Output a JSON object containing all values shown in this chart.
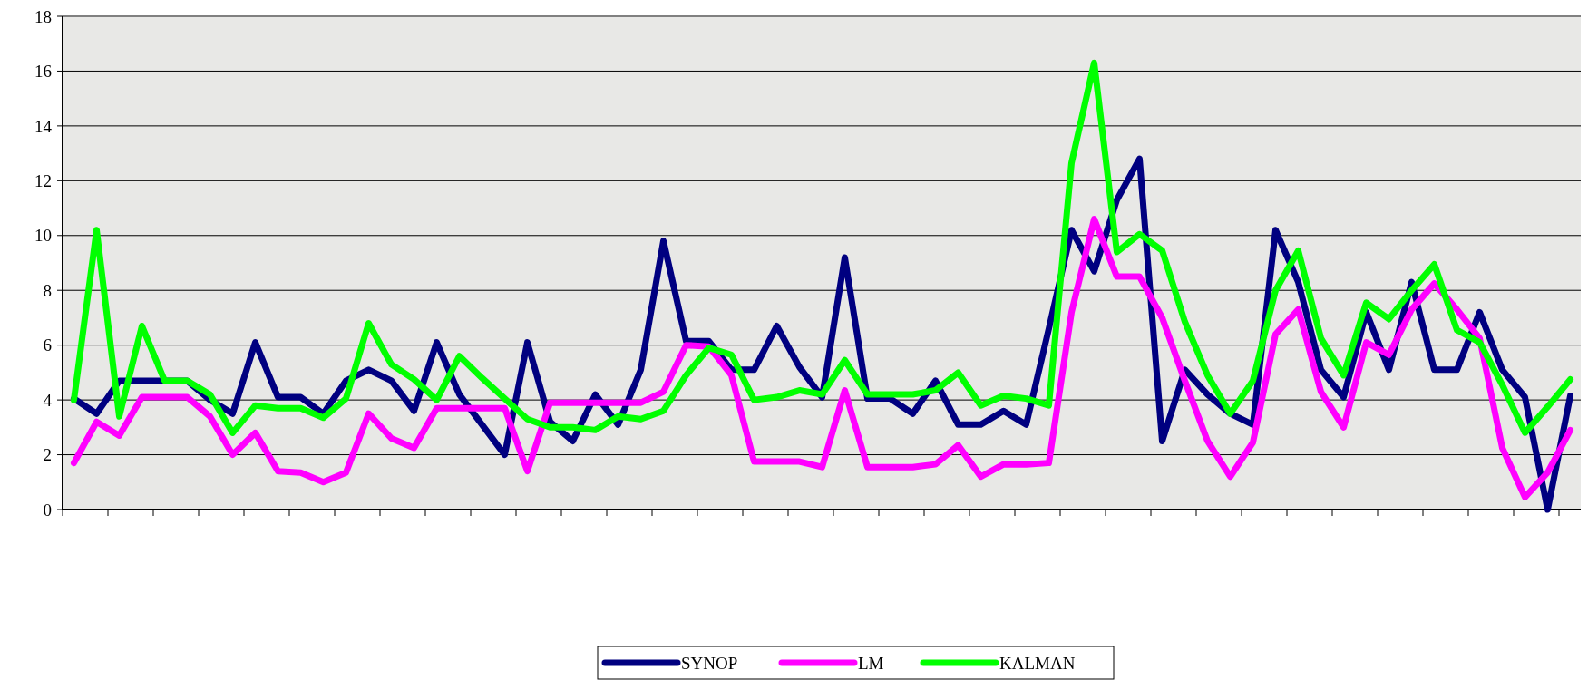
{
  "chart_data": {
    "type": "line",
    "categories": [
      null,
      null,
      null,
      null,
      null,
      null,
      null,
      null,
      null,
      null,
      null,
      null,
      null,
      null,
      null,
      null,
      null,
      null,
      null,
      null,
      null,
      null,
      null,
      null,
      null,
      null,
      null,
      null,
      null,
      null,
      null,
      null,
      null,
      null,
      null,
      null,
      null,
      null,
      null,
      null,
      null,
      null,
      null,
      null,
      null,
      null,
      null,
      null,
      null,
      null,
      null,
      null,
      null,
      null,
      null,
      null,
      null,
      null,
      null,
      null,
      null,
      null,
      null,
      null,
      null,
      null,
      null
    ],
    "series": [
      {
        "name": "SYNOP",
        "color": "#000080",
        "values": [
          4.05,
          3.5,
          4.7,
          4.7,
          4.7,
          4.7,
          4.0,
          3.5,
          6.1,
          4.1,
          4.1,
          3.5,
          4.7,
          5.1,
          4.7,
          3.6,
          6.1,
          4.2,
          3.1,
          2.0,
          6.1,
          3.2,
          2.5,
          4.2,
          3.1,
          5.1,
          9.8,
          6.15,
          6.15,
          5.1,
          5.1,
          6.7,
          5.2,
          4.1,
          9.2,
          4.05,
          4.05,
          3.5,
          4.7,
          3.1,
          3.1,
          3.6,
          3.1,
          6.6,
          10.2,
          8.7,
          11.3,
          12.8,
          2.5,
          5.1,
          4.2,
          3.5,
          3.1,
          10.2,
          8.3,
          5.1,
          4.1,
          7.2,
          5.1,
          8.3,
          5.1,
          5.1,
          7.2,
          5.1,
          4.1,
          0,
          4.15
        ]
      },
      {
        "name": "LM",
        "color": "#ff00ff",
        "values": [
          1.7,
          3.2,
          2.7,
          4.1,
          4.1,
          4.1,
          3.4,
          2.0,
          2.8,
          1.4,
          1.35,
          1.0,
          1.35,
          3.5,
          2.6,
          2.25,
          3.7,
          3.7,
          3.7,
          3.7,
          1.4,
          3.9,
          3.9,
          3.9,
          3.9,
          3.9,
          4.3,
          6.0,
          5.95,
          4.9,
          1.75,
          1.75,
          1.75,
          1.55,
          4.35,
          1.55,
          1.55,
          1.55,
          1.65,
          2.35,
          1.2,
          1.65,
          1.65,
          1.7,
          7.2,
          10.6,
          8.5,
          8.5,
          7.0,
          4.7,
          2.5,
          1.2,
          2.45,
          6.4,
          7.3,
          4.3,
          3.0,
          6.1,
          5.65,
          7.3,
          8.25,
          7.3,
          6.25,
          2.25,
          0.45,
          1.35,
          2.9
        ]
      },
      {
        "name": "KALMAN",
        "color": "#00ff00",
        "values": [
          4.0,
          10.2,
          3.4,
          6.7,
          4.7,
          4.7,
          4.2,
          2.8,
          3.8,
          3.7,
          3.7,
          3.35,
          4.05,
          6.8,
          5.3,
          4.75,
          4.0,
          5.6,
          4.8,
          4.05,
          3.3,
          3.0,
          3.0,
          2.9,
          3.4,
          3.3,
          3.6,
          4.9,
          5.9,
          5.65,
          4.0,
          4.1,
          4.35,
          4.2,
          5.45,
          4.2,
          4.2,
          4.2,
          4.35,
          5.0,
          3.8,
          4.15,
          4.05,
          3.8,
          12.65,
          16.3,
          9.4,
          10.05,
          9.45,
          6.85,
          4.9,
          3.5,
          4.7,
          8.0,
          9.45,
          6.25,
          4.9,
          7.55,
          6.95,
          8.0,
          8.95,
          6.55,
          6.1,
          4.55,
          2.8,
          3.75,
          4.75
        ]
      }
    ],
    "ylim": [
      0,
      18
    ],
    "yticks": [
      0,
      2,
      4,
      6,
      8,
      10,
      12,
      14,
      16,
      18
    ],
    "grid": "y",
    "legend": "bottom",
    "marker": "none",
    "line_style": "solid"
  }
}
